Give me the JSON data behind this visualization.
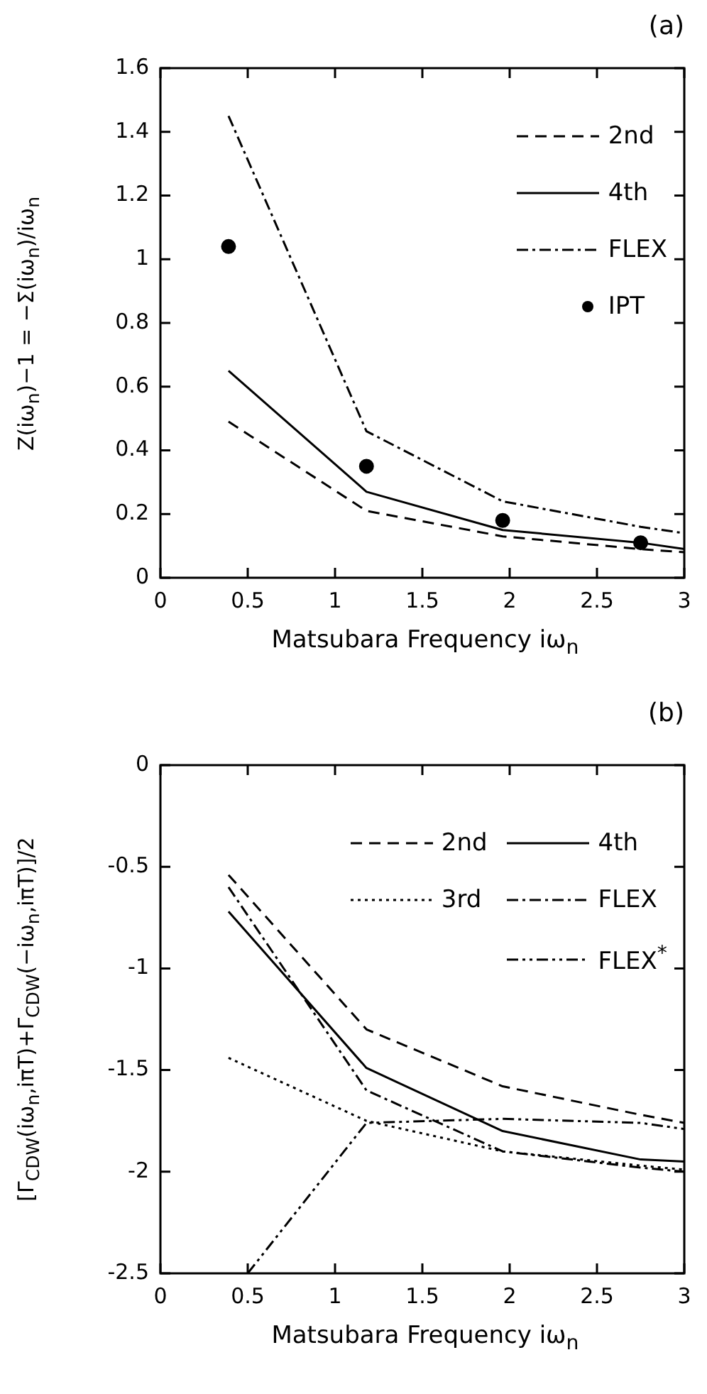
{
  "chart_data": [
    {
      "type": "line",
      "title": "(a)",
      "xlabel": "Matsubara Frequency iω$_{n}$",
      "ylabel": "Z(iω$_{n}$)−1 = −Σ(iω$_{n}$)/iω$_{n}$",
      "x": [
        0.39,
        1.18,
        1.96,
        2.75,
        3
      ],
      "series": [
        {
          "name": "2nd",
          "color": "#000000",
          "line_style": "dashed",
          "values": [
            0.49,
            0.21,
            0.13,
            0.09,
            0.08
          ]
        },
        {
          "name": "4th",
          "color": "#000000",
          "line_style": "solid",
          "values": [
            0.65,
            0.27,
            0.15,
            0.11,
            0.09
          ]
        },
        {
          "name": "FLEX",
          "color": "#000000",
          "line_style": "dashdot",
          "values": [
            1.45,
            0.46,
            0.24,
            0.16,
            0.14
          ]
        },
        {
          "name": "IPT",
          "type": "scatter",
          "color": "#000000",
          "marker": "circle",
          "x": [
            0.39,
            1.18,
            1.96,
            2.75
          ],
          "values": [
            1.04,
            0.35,
            0.18,
            0.11
          ]
        }
      ],
      "xlim": [
        0,
        3
      ],
      "xticks": [
        0,
        0.5,
        1,
        1.5,
        2,
        2.5,
        3
      ],
      "ylim": [
        0,
        1.6
      ],
      "yticks": [
        0,
        0.2,
        0.4,
        0.6,
        0.8,
        1,
        1.2,
        1.4,
        1.6
      ],
      "grid": false,
      "legend": "top right",
      "marker": "none"
    },
    {
      "type": "line",
      "title": "(b)",
      "xlabel": "Matsubara Frequency iω$_{n}$",
      "ylabel": "[Γ$_{CDW}$(iω$_{n}$,iπT)+Γ$_{CDW}$(−iω$_{n}$,iπT)]/2",
      "x": [
        0.39,
        1.18,
        1.96,
        2.75,
        3
      ],
      "series": [
        {
          "name": "2nd",
          "color": "#000000",
          "line_style": "dashed",
          "values": [
            -0.54,
            -1.3,
            -1.58,
            -1.72,
            -1.76
          ]
        },
        {
          "name": "4th",
          "color": "#000000",
          "line_style": "solid",
          "values": [
            -0.72,
            -1.49,
            -1.8,
            -1.94,
            -1.95
          ]
        },
        {
          "name": "3rd",
          "color": "#000000",
          "line_style": "dotted",
          "values": [
            -1.44,
            -1.75,
            -1.9,
            -1.97,
            -1.99
          ]
        },
        {
          "name": "FLEX",
          "color": "#000000",
          "line_style": "dashdot",
          "values": [
            -0.6,
            -1.6,
            -1.9,
            -1.98,
            -2.0
          ]
        },
        {
          "name": "FLEX$^{*}$",
          "color": "#000000",
          "line_style": "dashdotdot",
          "x": [
            0.5,
            1.18,
            1.96,
            2.75,
            3
          ],
          "values": [
            -2.5,
            -1.76,
            -1.74,
            -1.76,
            -1.79
          ]
        }
      ],
      "xlim": [
        0,
        3
      ],
      "xticks": [
        0,
        0.5,
        1,
        1.5,
        2,
        2.5,
        3
      ],
      "ylim": [
        -2.5,
        0
      ],
      "yticks": [
        -2.5,
        -2,
        -1.5,
        -1,
        -0.5,
        0
      ],
      "grid": false,
      "legend": "top right",
      "marker": "none"
    }
  ]
}
